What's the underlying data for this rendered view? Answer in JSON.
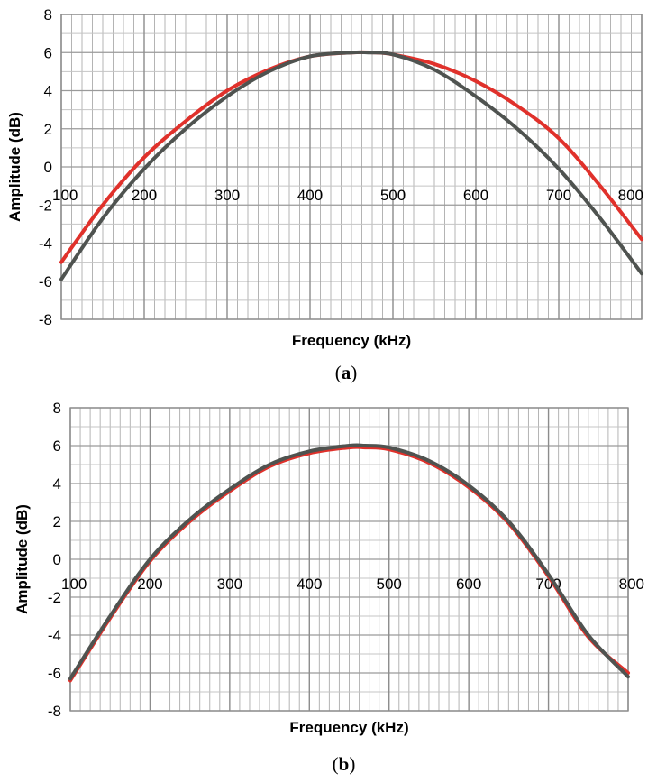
{
  "chart_data": [
    {
      "type": "line",
      "caption_letter": "a",
      "xlabel": "Frequency (kHz)",
      "ylabel": "Amplitude (dB)",
      "xlim": [
        100,
        800
      ],
      "ylim": [
        -8,
        8
      ],
      "x_ticks": [
        "100",
        "200",
        "300",
        "400",
        "500",
        "600",
        "700",
        "800"
      ],
      "y_ticks": [
        "8",
        "6",
        "4",
        "2",
        "0",
        "-2",
        "-4",
        "-6",
        "-8"
      ],
      "grid": true,
      "series": [
        {
          "name": "red curve",
          "color": "#e0312b",
          "x": [
            100,
            150,
            200,
            250,
            300,
            350,
            400,
            450,
            480,
            500,
            550,
            600,
            650,
            700,
            750,
            800
          ],
          "y": [
            -5.0,
            -2.0,
            0.5,
            2.4,
            4.0,
            5.1,
            5.8,
            6.0,
            6.0,
            5.9,
            5.4,
            4.5,
            3.2,
            1.5,
            -1.0,
            -3.8
          ]
        },
        {
          "name": "dark gray curve",
          "color": "#4f5350",
          "x": [
            100,
            150,
            200,
            250,
            300,
            350,
            400,
            450,
            470,
            500,
            550,
            600,
            650,
            700,
            750,
            800
          ],
          "y": [
            -5.9,
            -2.7,
            -0.1,
            2.0,
            3.7,
            5.0,
            5.8,
            6.0,
            6.0,
            5.9,
            5.1,
            3.7,
            2.0,
            -0.1,
            -2.7,
            -5.6
          ]
        }
      ]
    },
    {
      "type": "line",
      "caption_letter": "b",
      "xlabel": "Frequency (kHz)",
      "ylabel": "Amplitude (dB)",
      "xlim": [
        100,
        800
      ],
      "ylim": [
        -8,
        8
      ],
      "x_ticks": [
        "100",
        "200",
        "300",
        "400",
        "500",
        "600",
        "700",
        "800"
      ],
      "y_ticks": [
        "8",
        "6",
        "4",
        "2",
        "0",
        "-2",
        "-4",
        "-6",
        "-8"
      ],
      "grid": true,
      "series": [
        {
          "name": "red curve",
          "color": "#e0312b",
          "x": [
            100,
            150,
            200,
            250,
            300,
            350,
            400,
            450,
            470,
            500,
            550,
            600,
            650,
            700,
            750,
            800
          ],
          "y": [
            -6.4,
            -3.1,
            -0.1,
            2.0,
            3.6,
            4.9,
            5.6,
            5.9,
            5.9,
            5.8,
            5.1,
            3.8,
            1.9,
            -0.9,
            -4.1,
            -6.0
          ]
        },
        {
          "name": "dark gray curve",
          "color": "#4f5350",
          "x": [
            100,
            150,
            200,
            250,
            300,
            350,
            400,
            450,
            470,
            500,
            550,
            600,
            650,
            700,
            750,
            800
          ],
          "y": [
            -6.3,
            -3.0,
            0.0,
            2.1,
            3.7,
            5.0,
            5.7,
            6.0,
            6.0,
            5.9,
            5.2,
            3.9,
            2.0,
            -0.8,
            -4.0,
            -6.2
          ]
        }
      ]
    }
  ]
}
